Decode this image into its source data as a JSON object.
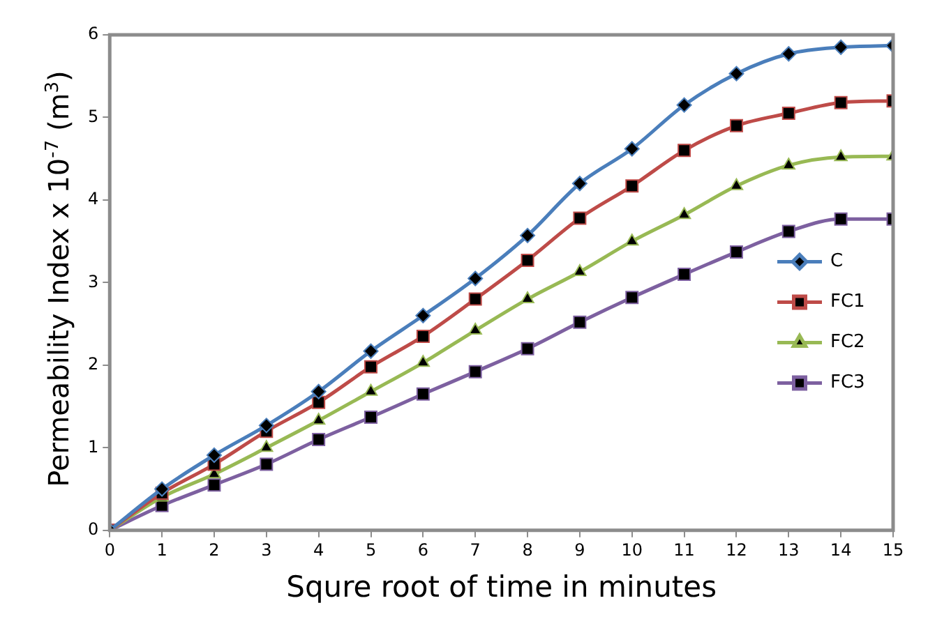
{
  "chart_data": {
    "type": "line",
    "xlabel": "Squre root of time in minutes",
    "ylabel": "Permeability Index x 10$^{-7}$ (m$^{3}$)",
    "x": [
      0,
      1,
      2,
      3,
      4,
      5,
      6,
      7,
      8,
      9,
      10,
      11,
      12,
      13,
      14,
      15
    ],
    "series": [
      {
        "name": "C",
        "color": "#4a7ebb",
        "marker": "diamond",
        "values": [
          0,
          0.5,
          0.91,
          1.27,
          1.68,
          2.17,
          2.6,
          3.05,
          3.57,
          4.2,
          4.62,
          5.15,
          5.53,
          5.77,
          5.85,
          5.87
        ]
      },
      {
        "name": "FC1",
        "color": "#be4b48",
        "marker": "square",
        "values": [
          0,
          0.45,
          0.8,
          1.2,
          1.55,
          1.98,
          2.35,
          2.8,
          3.27,
          3.78,
          4.17,
          4.6,
          4.9,
          5.05,
          5.18,
          5.2
        ]
      },
      {
        "name": "FC2",
        "color": "#98b954",
        "marker": "triangle",
        "values": [
          0,
          0.4,
          0.68,
          1.0,
          1.33,
          1.68,
          2.03,
          2.42,
          2.8,
          3.13,
          3.5,
          3.82,
          4.17,
          4.42,
          4.52,
          4.53
        ]
      },
      {
        "name": "FC3",
        "color": "#7d60a0",
        "marker": "square",
        "values": [
          0,
          0.3,
          0.55,
          0.8,
          1.1,
          1.37,
          1.65,
          1.92,
          2.2,
          2.52,
          2.82,
          3.1,
          3.37,
          3.62,
          3.77,
          3.77
        ]
      }
    ],
    "xlim": [
      0,
      15
    ],
    "xticks": [
      0,
      1,
      2,
      3,
      4,
      5,
      6,
      7,
      8,
      9,
      10,
      11,
      12,
      13,
      14,
      15
    ],
    "ylim": [
      0,
      6
    ],
    "yticks": [
      0,
      1,
      2,
      3,
      4,
      5,
      6
    ],
    "grid": false,
    "legend": "right"
  }
}
